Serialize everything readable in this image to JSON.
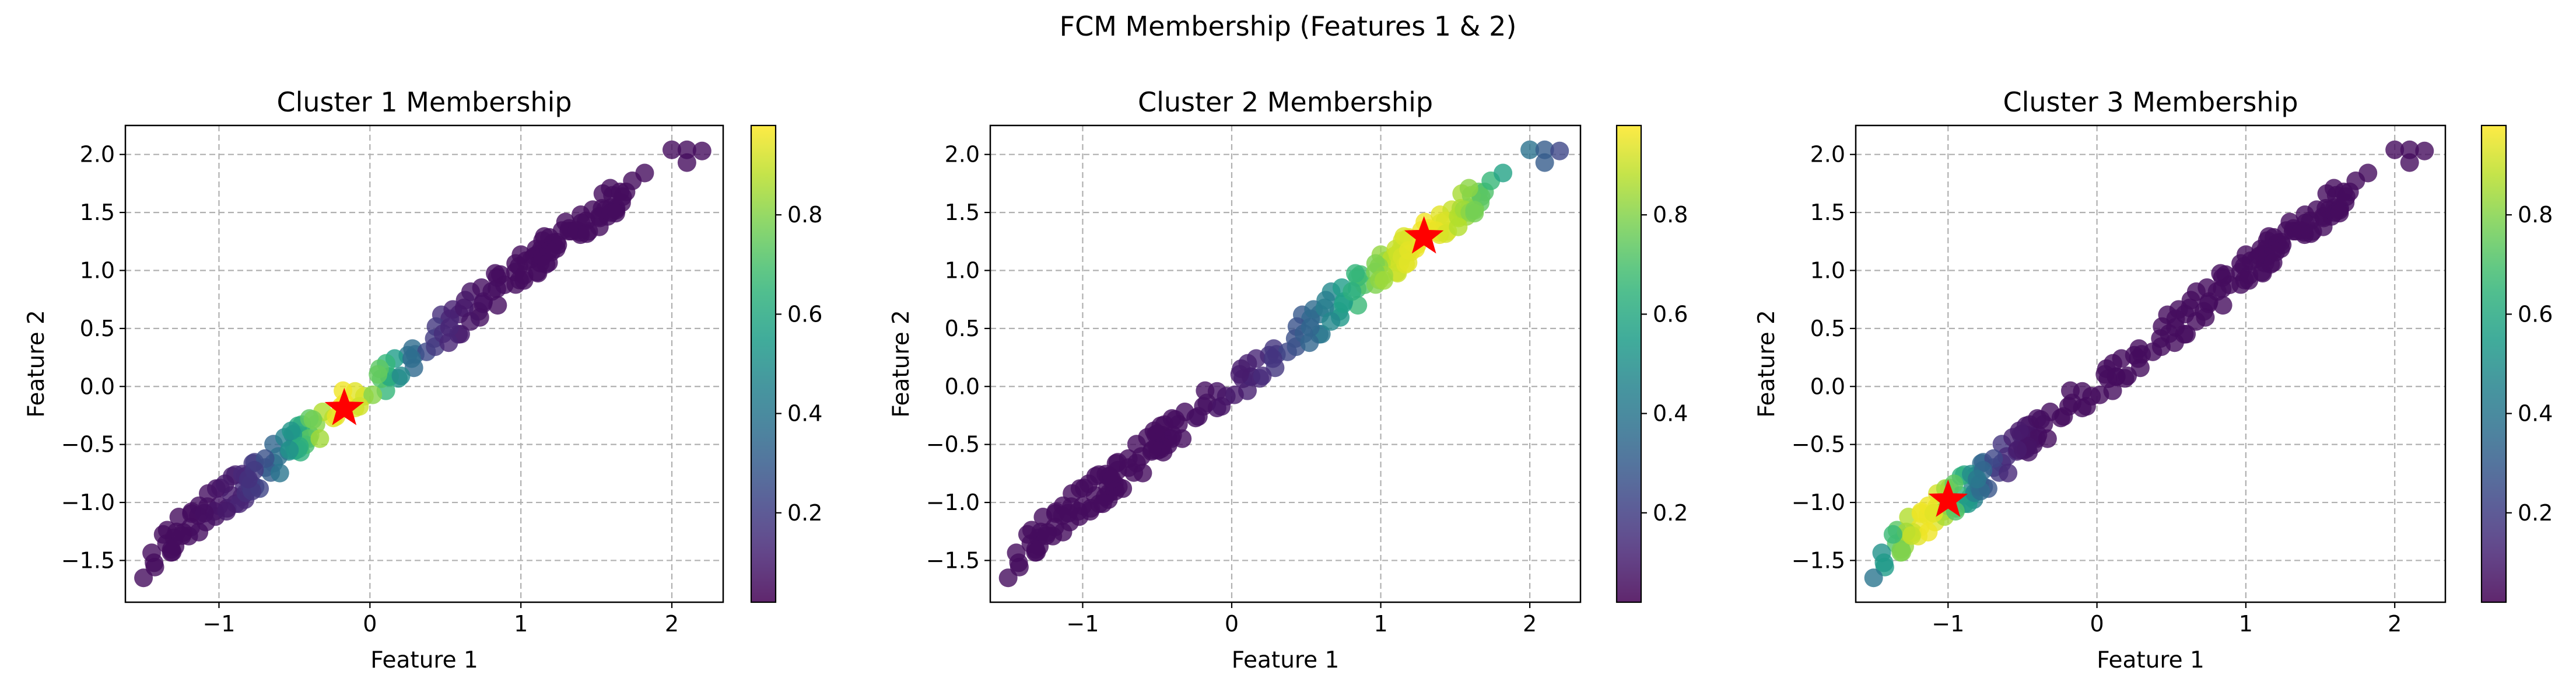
{
  "suptitle": "FCM Membership (Features 1 & 2)",
  "colormap": "viridis",
  "marker_color": "#ff0000",
  "chart_data": [
    {
      "type": "scatter",
      "title": "Cluster 1 Membership",
      "xlabel": "Feature 1",
      "ylabel": "Feature 2",
      "xlim": [
        -1.62,
        2.34
      ],
      "ylim": [
        -1.86,
        2.25
      ],
      "xticks": [
        -1,
        0,
        1,
        2
      ],
      "xticklabels": [
        "−1",
        "0",
        "1",
        "2"
      ],
      "yticks": [
        -1.5,
        -1.0,
        -0.5,
        0.0,
        0.5,
        1.0,
        1.5,
        2.0
      ],
      "yticklabels": [
        "−1.5",
        "−1.0",
        "−0.5",
        "0.0",
        "0.5",
        "1.0",
        "1.5",
        "2.0"
      ],
      "grid": true,
      "center": [
        -0.17,
        -0.19
      ],
      "peak_x": -0.17,
      "spread": 0.55,
      "colorbar": {
        "range": [
          0.02,
          0.98
        ],
        "ticks": [
          0.2,
          0.4,
          0.6,
          0.8
        ],
        "ticklabels": [
          "0.2",
          "0.4",
          "0.6",
          "0.8"
        ]
      }
    },
    {
      "type": "scatter",
      "title": "Cluster 2 Membership",
      "xlabel": "Feature 1",
      "ylabel": "Feature 2",
      "xlim": [
        -1.62,
        2.34
      ],
      "ylim": [
        -1.86,
        2.25
      ],
      "xticks": [
        -1,
        0,
        1,
        2
      ],
      "xticklabels": [
        "−1",
        "0",
        "1",
        "2"
      ],
      "yticks": [
        -1.5,
        -1.0,
        -0.5,
        0.0,
        0.5,
        1.0,
        1.5,
        2.0
      ],
      "yticklabels": [
        "−1.5",
        "−1.0",
        "−0.5",
        "0.0",
        "0.5",
        "1.0",
        "1.5",
        "2.0"
      ],
      "grid": true,
      "center": [
        1.29,
        1.29
      ],
      "peak_x": 1.29,
      "spread": 0.9,
      "colorbar": {
        "range": [
          0.02,
          0.98
        ],
        "ticks": [
          0.2,
          0.4,
          0.6,
          0.8
        ],
        "ticklabels": [
          "0.2",
          "0.4",
          "0.6",
          "0.8"
        ]
      }
    },
    {
      "type": "scatter",
      "title": "Cluster 3 Membership",
      "xlabel": "Feature 1",
      "ylabel": "Feature 2",
      "xlim": [
        -1.62,
        2.34
      ],
      "ylim": [
        -1.86,
        2.25
      ],
      "xticks": [
        -1,
        0,
        1,
        2
      ],
      "xticklabels": [
        "−1",
        "0",
        "1",
        "2"
      ],
      "yticks": [
        -1.5,
        -1.0,
        -0.5,
        0.0,
        0.5,
        1.0,
        1.5,
        2.0
      ],
      "yticklabels": [
        "−1.5",
        "−1.0",
        "−0.5",
        "0.0",
        "0.5",
        "1.0",
        "1.5",
        "2.0"
      ],
      "grid": true,
      "center": [
        -1.0,
        -0.98
      ],
      "peak_x": -1.15,
      "spread": 0.45,
      "colorbar": {
        "range": [
          0.02,
          0.98
        ],
        "ticks": [
          0.2,
          0.4,
          0.6,
          0.8
        ],
        "ticklabels": [
          "0.2",
          "0.4",
          "0.6",
          "0.8"
        ]
      }
    }
  ]
}
